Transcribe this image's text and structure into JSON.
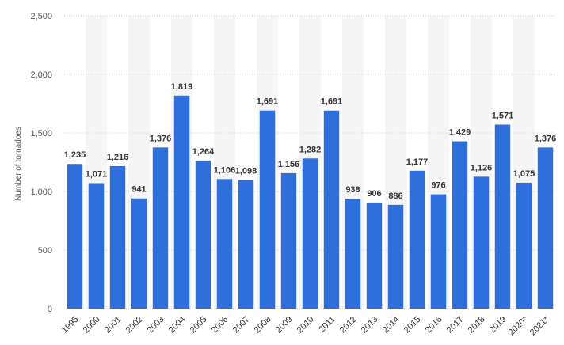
{
  "chart_data": {
    "type": "bar",
    "title": "",
    "xlabel": "",
    "ylabel": "Number of tornadoes",
    "ylim": [
      0,
      2500
    ],
    "yticks": [
      0,
      500,
      1000,
      1500,
      2000,
      2500
    ],
    "ytick_labels": [
      "0",
      "500",
      "1,000",
      "1,500",
      "2,000",
      "2,500"
    ],
    "grid": true,
    "categories": [
      "1995",
      "2000",
      "2001",
      "2002",
      "2003",
      "2004",
      "2005",
      "2006",
      "2007",
      "2008",
      "2009",
      "2010",
      "2011",
      "2012",
      "2013",
      "2014",
      "2015",
      "2016",
      "2017",
      "2018",
      "2019",
      "2020*",
      "2021*"
    ],
    "values": [
      1235,
      1071,
      1216,
      941,
      1376,
      1819,
      1264,
      1106,
      1098,
      1691,
      1156,
      1282,
      1691,
      938,
      906,
      886,
      1177,
      976,
      1429,
      1126,
      1571,
      1075,
      1376
    ],
    "value_labels": [
      "1,235",
      "1,071",
      "1,216",
      "941",
      "1,376",
      "1,819",
      "1,264",
      "1,106",
      "1,098",
      "1,691",
      "1,156",
      "1,282",
      "1,691",
      "938",
      "906",
      "886",
      "1,177",
      "976",
      "1,429",
      "1,126",
      "1,571",
      "1,075",
      "1,376"
    ],
    "bar_color": "#2e6fdb",
    "stripe_color": "#f5f5f5",
    "grid_color": "#cfcfcf"
  }
}
